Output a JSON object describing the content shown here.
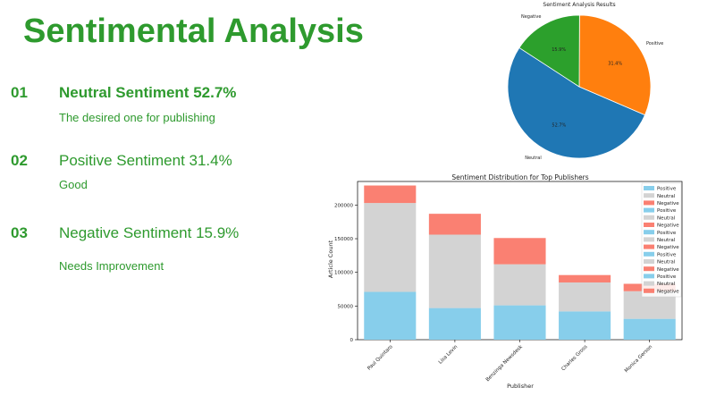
{
  "slide": {
    "title": "Sentimental Analysis",
    "items": [
      {
        "num": "01",
        "heading": "Neutral Sentiment  52.7%",
        "desc": "The desired one for publishing"
      },
      {
        "num": "02",
        "heading": "Positive Sentiment 31.4%",
        "desc": "Good"
      },
      {
        "num": "03",
        "heading": "Negative Sentiment 15.9%",
        "desc": "Needs Improvement"
      }
    ],
    "accent_color": "#2e9a2e"
  },
  "chart_data": [
    {
      "type": "pie",
      "title": "Sentiment Analysis Results",
      "labels": [
        "Neutral",
        "Positive",
        "Negative"
      ],
      "values": [
        52.7,
        31.4,
        15.9
      ],
      "pct_labels": [
        "52.7%",
        "31.4%",
        "15.9%"
      ],
      "colors": [
        "#1f77b4",
        "#ff7f0e",
        "#2ca02c"
      ]
    },
    {
      "type": "bar",
      "stacked": true,
      "title": "Sentiment Distribution for Top Publishers",
      "xlabel": "Publisher",
      "ylabel": "Article Count",
      "categories": [
        "Paul Quintaro",
        "Lisa Levin",
        "Benzinga Newsdesk",
        "Charles Gross",
        "Monica Gerson"
      ],
      "series": [
        {
          "name": "Positive",
          "color": "#87ceeb",
          "values": [
            71000,
            47000,
            51000,
            42000,
            31000
          ]
        },
        {
          "name": "Neutral",
          "color": "#d3d3d3",
          "values": [
            132000,
            109000,
            61000,
            43000,
            41000
          ]
        },
        {
          "name": "Negative",
          "color": "#fa8072",
          "values": [
            26000,
            31000,
            39000,
            11000,
            11000
          ]
        }
      ],
      "ylim": [
        0,
        235000
      ],
      "yticks": [
        0,
        50000,
        100000,
        150000,
        200000
      ],
      "ytick_labels": [
        "0",
        "50000",
        "100000",
        "150000",
        "200000"
      ],
      "legend": {
        "position": "top-right",
        "entries": [
          "Positive",
          "Neutral",
          "Negative",
          "Positive",
          "Neutral",
          "Negative",
          "Positive",
          "Neutral",
          "Negative",
          "Positive",
          "Neutral",
          "Negative",
          "Positive",
          "Neutral",
          "Negative"
        ]
      }
    }
  ]
}
